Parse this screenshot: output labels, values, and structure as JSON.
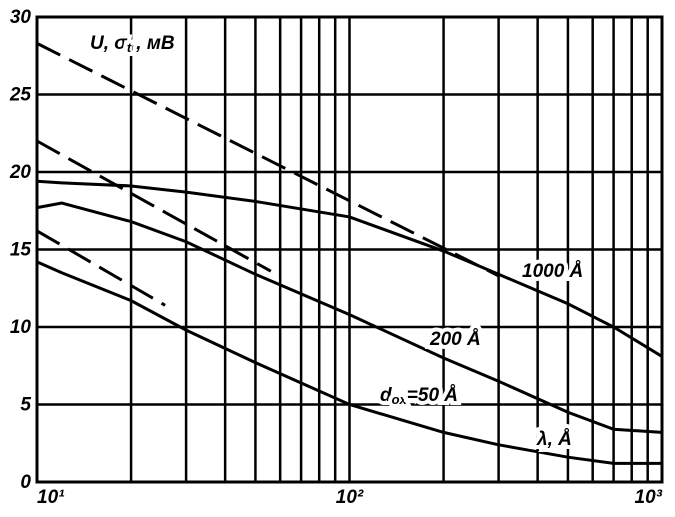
{
  "chart_data": {
    "type": "line",
    "xscale": "log",
    "xlim": [
      10,
      1000
    ],
    "ylim": [
      0,
      30
    ],
    "xticks": [
      {
        "value": 10,
        "label": "10¹"
      },
      {
        "value": 100,
        "label": "10²"
      },
      {
        "value": 1000,
        "label": "10³"
      }
    ],
    "xgrid": [
      20,
      30,
      40,
      50,
      60,
      70,
      80,
      90,
      200,
      300,
      400,
      500,
      600,
      700,
      800,
      900
    ],
    "yticks": [
      0,
      5,
      10,
      15,
      20,
      25,
      30
    ],
    "grid": true,
    "ylabel": "U, σ",
    "ylabel_sub": "tr",
    "ylabel_suffix": ", мВ",
    "xlabel": "λ, Å",
    "series": [
      {
        "name": "1000 Å",
        "color": "#000",
        "style": "solid",
        "x": [
          10,
          12,
          20,
          30,
          50,
          100,
          200,
          300,
          500,
          700,
          1000
        ],
        "values": [
          19.4,
          19.3,
          19.1,
          18.7,
          18.1,
          17.1,
          14.9,
          13.4,
          11.5,
          10,
          8.1
        ]
      },
      {
        "name": "200 Å",
        "color": "#000",
        "style": "solid",
        "x": [
          10,
          12,
          20,
          30,
          50,
          100,
          200,
          300,
          500,
          700,
          1000
        ],
        "values": [
          17.7,
          18,
          16.8,
          15.5,
          13.4,
          10.8,
          8,
          6.5,
          4.5,
          3.4,
          3.2
        ]
      },
      {
        "name_prefix": "d",
        "name_sub": "ox",
        "name": "=50 Å",
        "color": "#000",
        "style": "solid",
        "x": [
          10,
          12,
          20,
          30,
          50,
          100,
          200,
          300,
          500,
          700,
          1000
        ],
        "values": [
          14.2,
          13.5,
          11.7,
          9.8,
          7.7,
          5,
          3.2,
          2.4,
          1.6,
          1.2,
          1.2
        ]
      },
      {
        "color": "#000",
        "style": "dashed",
        "x": [
          10,
          300
        ],
        "values": [
          28.3,
          13.3
        ]
      },
      {
        "color": "#000",
        "style": "dashed",
        "x": [
          10,
          56
        ],
        "values": [
          22,
          13.6
        ]
      },
      {
        "color": "#000",
        "style": "dashed",
        "x": [
          10,
          25.7
        ],
        "values": [
          16.2,
          11.4
        ]
      }
    ]
  }
}
